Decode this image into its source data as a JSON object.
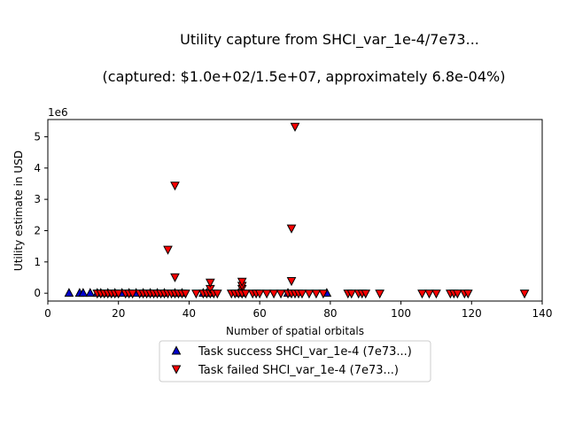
{
  "chart_data": {
    "type": "scatter",
    "title": "Utility capture from SHCI_var_1e-4/7e73...",
    "subtitle": "(captured: $1.0e+02/1.5e+07, approximately 6.8e-04%)",
    "xlabel": "Number of spatial orbitals",
    "ylabel": "Utility estimate in USD",
    "y_offset_label": "1e6",
    "xlim": [
      0,
      140
    ],
    "ylim": [
      -250000,
      5550000
    ],
    "x_ticks": [
      0,
      20,
      40,
      60,
      80,
      100,
      120,
      140
    ],
    "y_ticks": [
      0,
      1000000,
      2000000,
      3000000,
      4000000,
      5000000
    ],
    "y_tick_labels": [
      "0",
      "1",
      "2",
      "3",
      "4",
      "5"
    ],
    "grid": false,
    "legend_position": "below",
    "series": [
      {
        "name": "Task success SHCI_var_1e-4 (7e73...)",
        "marker": "triangle-up",
        "color": "#0000cc",
        "x": [
          6,
          9,
          10,
          12,
          14,
          15,
          17,
          19,
          21,
          23,
          25,
          27,
          29,
          31,
          33,
          36,
          38,
          44,
          45,
          46,
          54,
          55,
          68,
          79
        ],
        "y": [
          0,
          0,
          0,
          0,
          0,
          0,
          0,
          0,
          0,
          0,
          0,
          0,
          0,
          0,
          0,
          0,
          0,
          0,
          0,
          0,
          0,
          0,
          0,
          0
        ]
      },
      {
        "name": "Task failed SHCI_var_1e-4 (7e73...)",
        "marker": "triangle-down",
        "color": "#ff0000",
        "x": [
          14,
          15,
          16,
          17,
          18,
          19,
          20,
          22,
          23,
          24,
          26,
          27,
          28,
          29,
          30,
          31,
          32,
          33,
          34,
          34,
          35,
          36,
          36,
          36,
          37,
          38,
          39,
          42,
          44,
          45,
          46,
          46,
          46,
          47,
          48,
          52,
          53,
          54,
          55,
          55,
          55,
          55,
          55,
          56,
          58,
          59,
          60,
          62,
          64,
          66,
          68,
          69,
          69,
          69,
          70,
          70,
          71,
          72,
          74,
          76,
          78,
          85,
          86,
          88,
          89,
          90,
          94,
          106,
          108,
          110,
          114,
          115,
          116,
          118,
          119,
          135
        ],
        "y": [
          0,
          0,
          0,
          0,
          0,
          0,
          0,
          0,
          0,
          0,
          0,
          0,
          0,
          0,
          0,
          0,
          0,
          0,
          0,
          1400000,
          0,
          3450000,
          520000,
          0,
          0,
          0,
          0,
          0,
          0,
          0,
          0,
          150000,
          350000,
          0,
          0,
          0,
          0,
          0,
          0,
          150000,
          250000,
          380000,
          0,
          0,
          0,
          0,
          0,
          0,
          0,
          0,
          0,
          0,
          2080000,
          400000,
          5330000,
          0,
          0,
          0,
          0,
          0,
          0,
          0,
          0,
          0,
          0,
          0,
          0,
          0,
          0,
          0,
          0,
          0,
          0,
          0,
          0,
          0
        ]
      }
    ]
  }
}
